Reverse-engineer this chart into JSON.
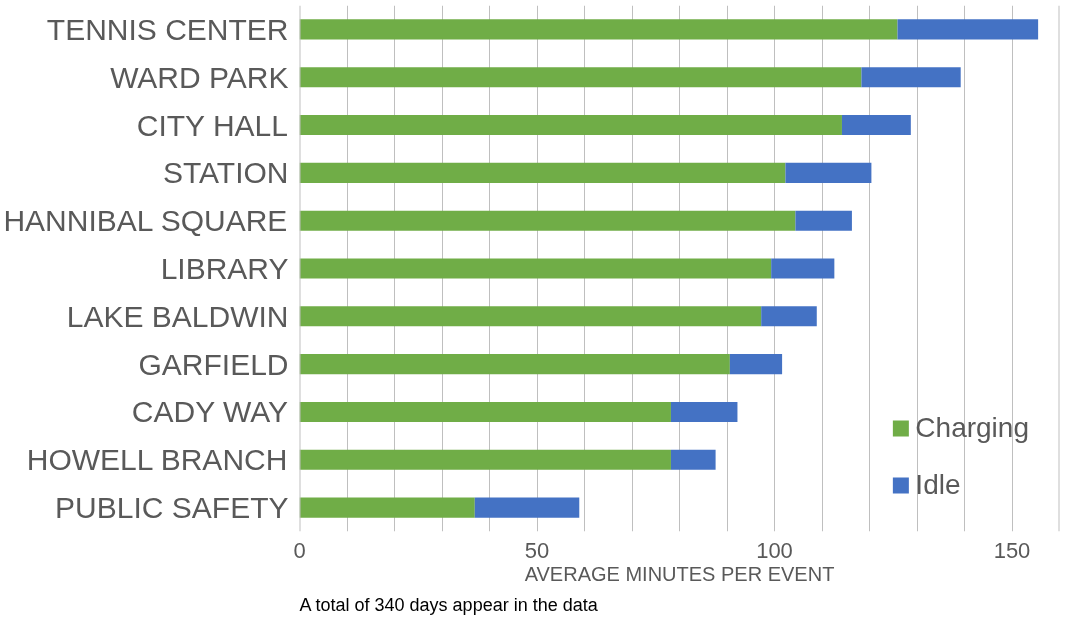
{
  "chart_data": {
    "type": "bar",
    "orientation": "horizontal",
    "stacked": true,
    "categories": [
      "TENNIS CENTER",
      "WARD PARK",
      "CITY HALL",
      "STATION",
      "HANNIBAL SQUARE",
      "LIBRARY",
      "LAKE BALDWIN",
      "GARFIELD",
      "CADY WAY",
      "HOWELL BRANCH",
      "PUBLIC SAFETY"
    ],
    "series": [
      {
        "name": "Charging",
        "color": "#70ad47",
        "values": [
          125.9,
          118.3,
          114.2,
          102.3,
          104.4,
          99.3,
          97.2,
          90.6,
          78.2,
          78.2,
          36.9
        ]
      },
      {
        "name": "Idle",
        "color": "#4472c4",
        "values": [
          29.6,
          20.9,
          14.5,
          18.1,
          11.9,
          13.3,
          11.7,
          11.0,
          14.0,
          9.4,
          22.0
        ]
      }
    ],
    "xlabel": "AVERAGE MINUTES PER EVENT",
    "xlim": [
      0,
      160
    ],
    "xticks": [
      0,
      {
        "value": 10,
        "label": null
      },
      {
        "value": 20,
        "label": null
      },
      {
        "value": 30,
        "label": null
      },
      {
        "value": 40,
        "label": null
      },
      50,
      {
        "value": 60,
        "label": null
      },
      {
        "value": 70,
        "label": null
      },
      {
        "value": 80,
        "label": null
      },
      {
        "value": 90,
        "label": null
      },
      100,
      {
        "value": 110,
        "label": null
      },
      {
        "value": 120,
        "label": null
      },
      {
        "value": 130,
        "label": null
      },
      {
        "value": 140,
        "label": null
      },
      150,
      {
        "value": 160,
        "label": null
      }
    ],
    "grid": "x",
    "legend": "bottom right",
    "annotations": [
      "A total of 340 days appear in the data"
    ]
  }
}
